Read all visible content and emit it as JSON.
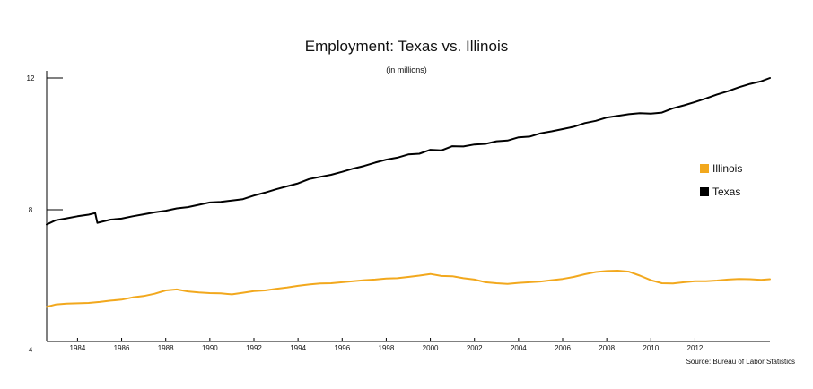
{
  "chart_data": {
    "type": "line",
    "title": "Employment: Texas vs. Illinois",
    "subtitle": "(in millions)",
    "source": "Source: Bureau of Labor Statistics",
    "xlim": [
      1982.6,
      2015.4
    ],
    "ylim": [
      4,
      12
    ],
    "yticks": [
      4,
      8,
      12
    ],
    "xticks": [
      1984,
      1986,
      1988,
      1990,
      1992,
      1994,
      1996,
      1998,
      2000,
      2002,
      2004,
      2006,
      2008,
      2010,
      2012
    ],
    "legend": [
      {
        "name": "Illinois",
        "color": "#f2a81d"
      },
      {
        "name": "Texas",
        "color": "#000000"
      }
    ],
    "series": [
      {
        "name": "Texas",
        "color": "#000000",
        "x": [
          1982.6,
          1983.0,
          1983.5,
          1984.0,
          1984.5,
          1984.8,
          1984.9,
          1985.0,
          1985.5,
          1986.0,
          1986.5,
          1987.0,
          1987.5,
          1988.0,
          1988.5,
          1989.0,
          1989.5,
          1990.0,
          1990.5,
          1991.0,
          1991.5,
          1992.0,
          1992.5,
          1993.0,
          1993.5,
          1994.0,
          1994.5,
          1995.0,
          1995.5,
          1996.0,
          1996.5,
          1997.0,
          1997.5,
          1998.0,
          1998.5,
          1999.0,
          1999.5,
          2000.0,
          2000.5,
          2001.0,
          2001.5,
          2002.0,
          2002.5,
          2003.0,
          2003.5,
          2004.0,
          2004.5,
          2005.0,
          2005.5,
          2006.0,
          2006.5,
          2007.0,
          2007.5,
          2008.0,
          2008.5,
          2009.0,
          2009.5,
          2010.0,
          2010.5,
          2011.0,
          2011.5,
          2012.0,
          2012.5,
          2013.0,
          2013.5,
          2014.0,
          2014.5,
          2015.0,
          2015.4
        ],
        "values": [
          7.55,
          7.68,
          7.74,
          7.8,
          7.85,
          7.9,
          7.6,
          7.62,
          7.7,
          7.73,
          7.8,
          7.86,
          7.92,
          7.97,
          8.04,
          8.08,
          8.15,
          8.22,
          8.24,
          8.28,
          8.32,
          8.43,
          8.52,
          8.62,
          8.71,
          8.8,
          8.93,
          9.0,
          9.06,
          9.15,
          9.25,
          9.33,
          9.43,
          9.52,
          9.58,
          9.68,
          9.7,
          9.82,
          9.8,
          9.93,
          9.92,
          9.98,
          10.0,
          10.08,
          10.1,
          10.2,
          10.22,
          10.32,
          10.38,
          10.45,
          10.52,
          10.63,
          10.7,
          10.8,
          10.85,
          10.9,
          10.93,
          10.92,
          10.95,
          11.08,
          11.17,
          11.27,
          11.38,
          11.5,
          11.6,
          11.72,
          11.82,
          11.9,
          12.0
        ]
      },
      {
        "name": "Illinois",
        "color": "#f2a81d",
        "x": [
          1982.6,
          1983.0,
          1983.5,
          1984.0,
          1984.5,
          1985.0,
          1985.5,
          1986.0,
          1986.5,
          1987.0,
          1987.5,
          1988.0,
          1988.5,
          1989.0,
          1989.5,
          1990.0,
          1990.5,
          1991.0,
          1991.5,
          1992.0,
          1992.5,
          1993.0,
          1993.5,
          1994.0,
          1994.5,
          1995.0,
          1995.5,
          1996.0,
          1996.5,
          1997.0,
          1997.5,
          1998.0,
          1998.5,
          1999.0,
          1999.5,
          2000.0,
          2000.5,
          2001.0,
          2001.5,
          2002.0,
          2002.5,
          2003.0,
          2003.5,
          2004.0,
          2004.5,
          2005.0,
          2005.5,
          2006.0,
          2006.5,
          2007.0,
          2007.5,
          2008.0,
          2008.5,
          2009.0,
          2009.5,
          2010.0,
          2010.5,
          2011.0,
          2011.5,
          2012.0,
          2012.5,
          2013.0,
          2013.5,
          2014.0,
          2014.5,
          2015.0,
          2015.4
        ],
        "values": [
          5.05,
          5.12,
          5.15,
          5.16,
          5.17,
          5.2,
          5.24,
          5.27,
          5.34,
          5.38,
          5.45,
          5.55,
          5.58,
          5.52,
          5.49,
          5.47,
          5.46,
          5.43,
          5.48,
          5.53,
          5.55,
          5.6,
          5.64,
          5.69,
          5.73,
          5.76,
          5.77,
          5.8,
          5.83,
          5.86,
          5.88,
          5.91,
          5.92,
          5.96,
          6.0,
          6.05,
          5.99,
          5.98,
          5.92,
          5.88,
          5.8,
          5.77,
          5.75,
          5.78,
          5.8,
          5.82,
          5.86,
          5.9,
          5.96,
          6.04,
          6.11,
          6.14,
          6.15,
          6.12,
          6.0,
          5.86,
          5.77,
          5.76,
          5.8,
          5.83,
          5.83,
          5.85,
          5.88,
          5.9,
          5.89,
          5.87,
          5.89
        ]
      }
    ]
  }
}
